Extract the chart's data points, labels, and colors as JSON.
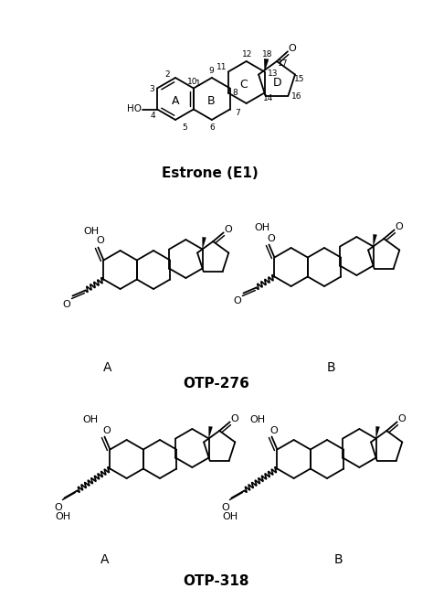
{
  "title_estrone": "Estrone (E1)",
  "title_otp276": "OTP-276",
  "title_otp318": "OTP-318",
  "bg": "#ffffff",
  "lc": "#000000",
  "lw": 1.3
}
